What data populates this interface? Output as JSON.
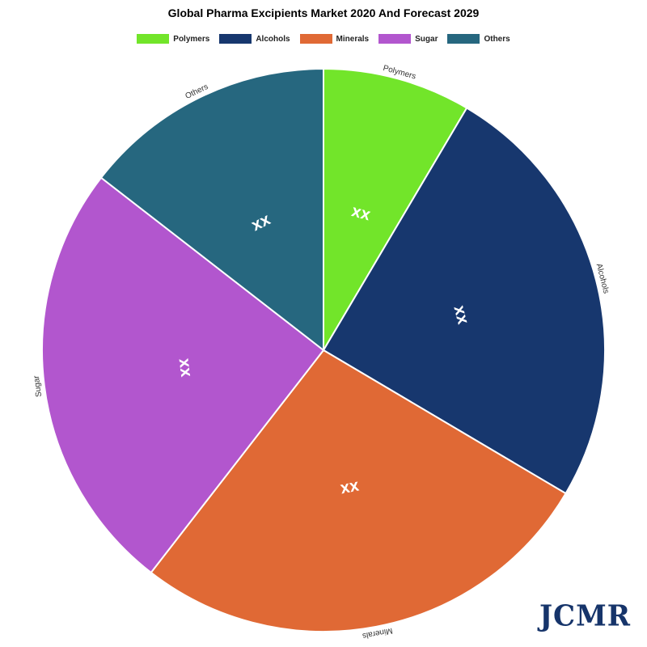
{
  "chart_data": {
    "type": "pie",
    "title": "Global Pharma Excipients Market 2020 And Forecast 2029",
    "legend_position": "top",
    "slices": [
      {
        "name": "Polymers",
        "value": 8.5,
        "label": "XX",
        "color": "#72e52a"
      },
      {
        "name": "Alcohols",
        "value": 25,
        "label": "XX",
        "color": "#17376e"
      },
      {
        "name": "Minerals",
        "value": 27,
        "label": "XX",
        "color": "#e06935"
      },
      {
        "name": "Sugar",
        "value": 25,
        "label": "XX",
        "color": "#b256ce"
      },
      {
        "name": "Others",
        "value": 14.5,
        "label": "XX",
        "color": "#26677f"
      }
    ]
  },
  "logo": "JCMR"
}
